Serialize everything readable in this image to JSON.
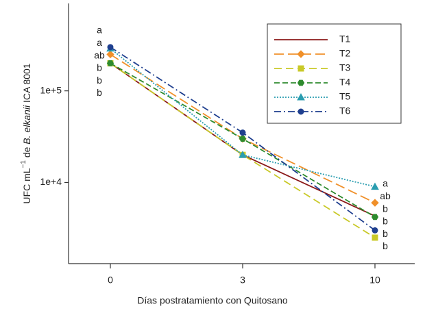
{
  "chart_data": {
    "type": "line",
    "ylabel": [
      "UFC mL",
      "−1",
      " de ",
      "B. elkanii",
      " ICA 8001"
    ],
    "xlabel": "Días postratamiento con Quitosano",
    "categories": [
      "0",
      "3",
      "10"
    ],
    "log_scale": true,
    "ylim": [
      1300,
      900000
    ],
    "yticks": [
      {
        "value": 10000,
        "label": "1e+4"
      },
      {
        "value": 100000,
        "label": "1e+5"
      }
    ],
    "series": [
      {
        "name": "T1",
        "color": "#8b1a1a",
        "linestyle": "solid",
        "marker": "none",
        "values": [
          200000,
          20000,
          4300
        ],
        "letters": [
          "b",
          null,
          "b"
        ]
      },
      {
        "name": "T2",
        "color": "#f0902a",
        "linestyle": "longdash",
        "marker": "diamond",
        "values": [
          250000,
          30000,
          6000
        ],
        "letters": [
          "ab",
          null,
          "ab"
        ]
      },
      {
        "name": "T3",
        "color": "#c9c928",
        "linestyle": "dashed",
        "marker": "square",
        "values": [
          200000,
          20000,
          2500
        ],
        "letters": [
          "b",
          null,
          "b"
        ]
      },
      {
        "name": "T4",
        "color": "#2e8b2e",
        "linestyle": "shortdash",
        "marker": "hexagon",
        "values": [
          200000,
          30000,
          4200
        ],
        "letters": [
          "b",
          null,
          "b"
        ]
      },
      {
        "name": "T5",
        "color": "#2a9db0",
        "linestyle": "dotted",
        "marker": "triangle",
        "values": [
          290000,
          20000,
          9000
        ],
        "letters": [
          "a",
          null,
          "a"
        ]
      },
      {
        "name": "T6",
        "color": "#1f3f8f",
        "linestyle": "dashdot",
        "marker": "circle",
        "values": [
          300000,
          35000,
          3000
        ],
        "letters": [
          "a",
          null,
          "b"
        ]
      }
    ]
  }
}
